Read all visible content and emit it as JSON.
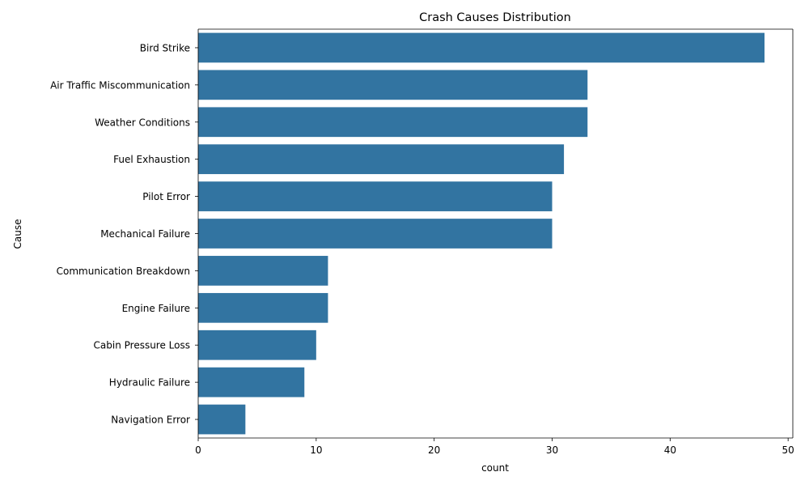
{
  "chart_data": {
    "type": "bar",
    "orientation": "horizontal",
    "title": "Crash Causes Distribution",
    "xlabel": "count",
    "ylabel": "Cause",
    "categories": [
      "Bird Strike",
      "Air Traffic Miscommunication",
      "Weather Conditions",
      "Fuel Exhaustion",
      "Pilot Error",
      "Mechanical Failure",
      "Communication Breakdown",
      "Engine Failure",
      "Cabin Pressure Loss",
      "Hydraulic Failure",
      "Navigation Error"
    ],
    "values": [
      48,
      33,
      33,
      31,
      30,
      30,
      11,
      11,
      10,
      9,
      4
    ],
    "xlim": [
      0,
      50.4
    ],
    "xticks": [
      0,
      10,
      20,
      30,
      40,
      50
    ],
    "grid": false,
    "bar_color": "#3274a1"
  }
}
